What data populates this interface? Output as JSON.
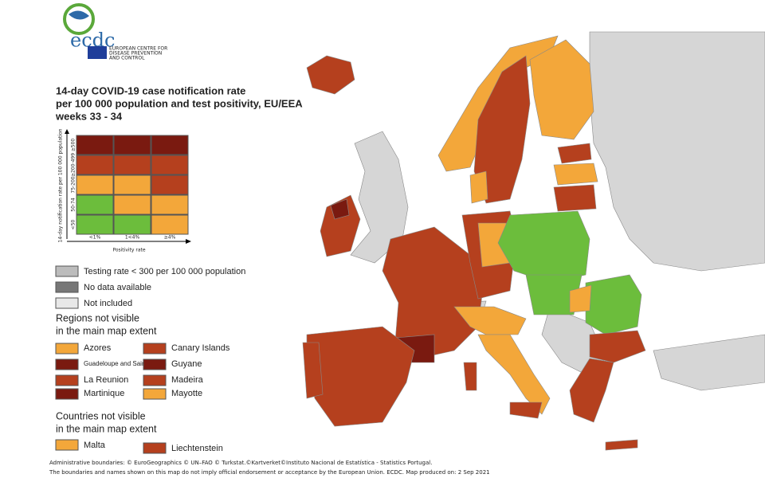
{
  "logo": {
    "name": "ecdc",
    "subtitle_lines": [
      "EUROPEAN CENTRE FOR",
      "DISEASE PREVENTION",
      "AND CONTROL"
    ]
  },
  "title_lines": [
    "14-day COVID-19 case notification rate",
    "per 100 000 population and test positivity, EU/EEA",
    "weeks 33 - 34"
  ],
  "matrix": {
    "y_label": "14-day notification rate per 100 000 population",
    "rows": [
      "≥500",
      "≥200-499",
      "75-200",
      "50-74",
      "<50"
    ],
    "columns": [
      "<1%",
      "1<4%",
      "≥4%"
    ],
    "x_label": "Positivity rate"
  },
  "legend": [
    "Testing rate < 300 per 100 000 population",
    "No data available",
    "Not included"
  ],
  "regions": {
    "heading_lines": [
      "Regions not visible",
      "in the main map extent"
    ],
    "items": [
      "Azores",
      "Canary Islands",
      "Guadeloupe and Saint Martin",
      "Guyane",
      "La Reunion",
      "Madeira",
      "Martinique",
      "Mayotte"
    ]
  },
  "countries": {
    "heading_lines": [
      "Countries not visible",
      "in the main map extent"
    ],
    "items": [
      "Malta",
      "Liechtenstein"
    ]
  },
  "footer": [
    "Administrative boundaries: © EuroGeographics © UN–FAO © Turkstat.©Kartverket©Instituto Nacional de Estatística - Statistics Portugal.",
    "The boundaries and names shown on this map do not imply official endorsement or acceptance by the European Union. ECDC. Map produced on: 2 Sep 2021"
  ]
}
